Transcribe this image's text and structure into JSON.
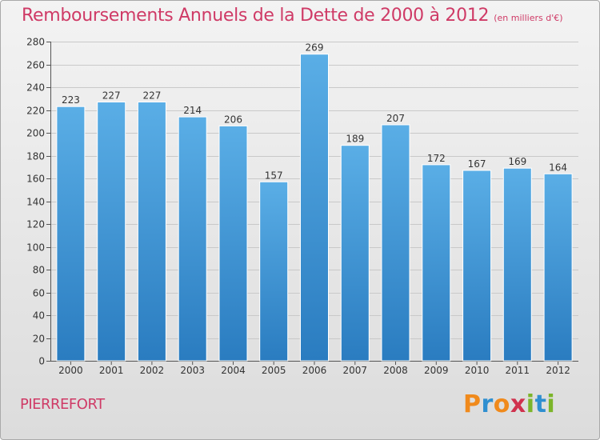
{
  "header": {
    "title": "Remboursements Annuels de la Dette de 2000 à 2012",
    "unit": "(en milliers d'€)"
  },
  "footer": {
    "place": "PIERREFORT",
    "logo": "Proxiti"
  },
  "colors": {
    "title": "#cf3a66",
    "bar_top": "#5aaee6",
    "bar_bottom": "#2a7cc0",
    "logo_letters": [
      "#f08a1c",
      "#2f8fd0",
      "#f08a1c",
      "#d0324e",
      "#7cb52a",
      "#2f8fd0",
      "#7cb52a"
    ]
  },
  "chart_data": {
    "type": "bar",
    "title": "Remboursements Annuels de la Dette de 2000 à 2012",
    "xlabel": "",
    "ylabel": "",
    "categories": [
      "2000",
      "2001",
      "2002",
      "2003",
      "2004",
      "2005",
      "2006",
      "2007",
      "2008",
      "2009",
      "2010",
      "2011",
      "2012"
    ],
    "values": [
      223,
      227,
      227,
      214,
      206,
      157,
      269,
      189,
      207,
      172,
      167,
      169,
      164
    ],
    "ylim": [
      0,
      280
    ],
    "yticks": [
      0,
      20,
      40,
      60,
      80,
      100,
      120,
      140,
      160,
      180,
      200,
      220,
      240,
      260,
      280
    ],
    "grid": true,
    "legend": "none"
  }
}
